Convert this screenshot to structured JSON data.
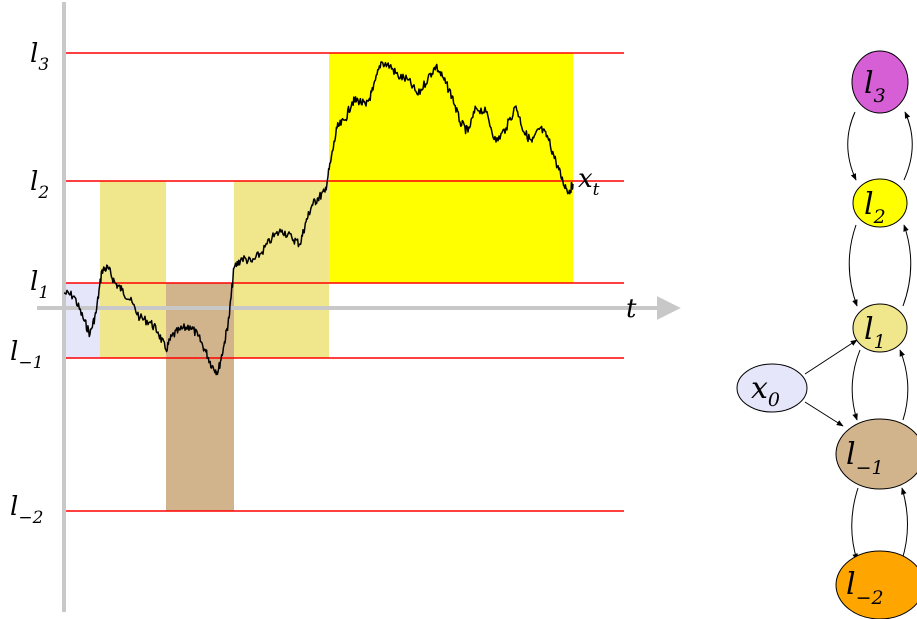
{
  "axes": {
    "t_label": "t",
    "path_label": {
      "main": "x",
      "sub": "t"
    }
  },
  "level_labels": [
    {
      "id": "l3",
      "main": "l",
      "sub": "3"
    },
    {
      "id": "l2",
      "main": "l",
      "sub": "2"
    },
    {
      "id": "l1",
      "main": "l",
      "sub": "1"
    },
    {
      "id": "lm1",
      "main": "l",
      "sub": "−1"
    },
    {
      "id": "lm2",
      "main": "l",
      "sub": "−2"
    }
  ],
  "graph_nodes": [
    {
      "id": "l3",
      "main": "l",
      "sub": "3",
      "color": "#d65fd6"
    },
    {
      "id": "l2",
      "main": "l",
      "sub": "2",
      "color": "#ffff00"
    },
    {
      "id": "l1",
      "main": "l",
      "sub": "1",
      "color": "#f0e68c"
    },
    {
      "id": "lm1",
      "main": "l",
      "sub": "−1",
      "color": "#d2b48c"
    },
    {
      "id": "lm2",
      "main": "l",
      "sub": "−2",
      "color": "#ffa500"
    },
    {
      "id": "x0",
      "main": "x",
      "sub": "0",
      "color": "#e6e6fa"
    }
  ],
  "colors": {
    "level_line": "#ff0000",
    "axis": "#c8c8c8",
    "path": "#000000",
    "band_x0": "#e6e6fa",
    "band_l1": "#f0e68c",
    "band_lm1": "#d2b48c",
    "band_l2": "#ffff00"
  }
}
